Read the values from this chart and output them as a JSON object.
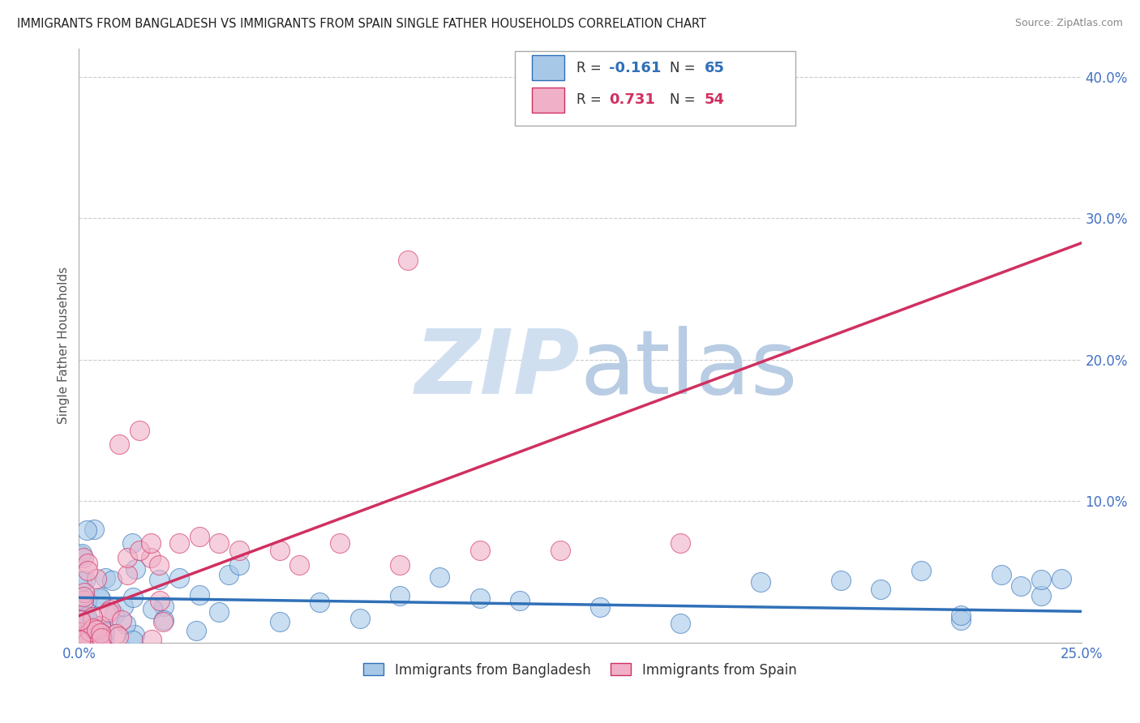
{
  "title": "IMMIGRANTS FROM BANGLADESH VS IMMIGRANTS FROM SPAIN SINGLE FATHER HOUSEHOLDS CORRELATION CHART",
  "source": "Source: ZipAtlas.com",
  "ylabel": "Single Father Households",
  "legend_label_blue": "Immigrants from Bangladesh",
  "legend_label_pink": "Immigrants from Spain",
  "R_blue": -0.161,
  "N_blue": 65,
  "R_pink": 0.731,
  "N_pink": 54,
  "x_min": 0.0,
  "x_max": 0.25,
  "y_min": 0.0,
  "y_max": 0.42,
  "xtick_labels": [
    "0.0%",
    "",
    "",
    "",
    "",
    "25.0%"
  ],
  "xtick_vals": [
    0.0,
    0.05,
    0.1,
    0.15,
    0.2,
    0.25
  ],
  "ytick_labels": [
    "10.0%",
    "20.0%",
    "30.0%",
    "40.0%"
  ],
  "ytick_vals": [
    0.1,
    0.2,
    0.3,
    0.4
  ],
  "blue_color": "#a8c8e8",
  "pink_color": "#f0b0c8",
  "trend_blue_color": "#3070b8",
  "trend_pink_color": "#d03060",
  "watermark_zip_color": "#d0dff0",
  "watermark_atlas_color": "#b8cce4",
  "bg_color": "#ffffff",
  "grid_color": "#cccccc",
  "tick_color": "#4472c4",
  "title_color": "#222222",
  "source_color": "#888888",
  "ylabel_color": "#555555",
  "legend_border_color": "#aaaaaa",
  "legend_text_color": "#333333"
}
